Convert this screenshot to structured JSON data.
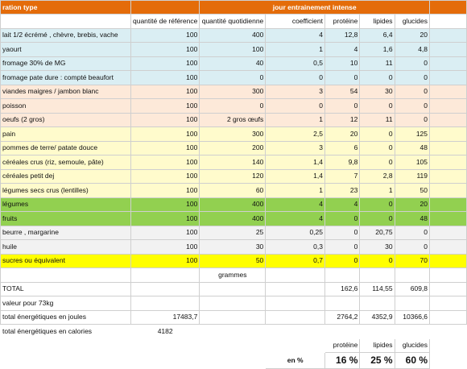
{
  "header": {
    "col1": "ration type",
    "title": "jour  entrainement intense"
  },
  "columns": [
    "quantité de référence",
    "quantité quotidienne",
    "coefficient",
    "protéine",
    "lipides",
    "glucides"
  ],
  "rows": [
    {
      "label": "lait 1/2 écrémé , chèvre, brebis, vache",
      "ref": "100",
      "qty": "400",
      "coef": "4",
      "prot": "12,8",
      "lip": "6,4",
      "glu": "20"
    },
    {
      "label": "yaourt",
      "ref": "100",
      "qty": "100",
      "coef": "1",
      "prot": "4",
      "lip": "1,6",
      "glu": "4,8"
    },
    {
      "label": "fromage   30% de MG",
      "ref": "100",
      "qty": "40",
      "coef": "0,5",
      "prot": "10",
      "lip": "11",
      "glu": "0"
    },
    {
      "label": "fromage pate dure : compté beaufort",
      "ref": "100",
      "qty": "0",
      "coef": "0",
      "prot": "0",
      "lip": "0",
      "glu": "0"
    },
    {
      "label": "viandes maigres / jambon blanc",
      "ref": "100",
      "qty": "300",
      "coef": "3",
      "prot": "54",
      "lip": "30",
      "glu": "0"
    },
    {
      "label": "poisson",
      "ref": "100",
      "qty": "0",
      "coef": "0",
      "prot": "0",
      "lip": "0",
      "glu": "0"
    },
    {
      "label": "oeufs (2 gros)",
      "ref": "100",
      "qty": "2 gros œufs",
      "coef": "1",
      "prot": "12",
      "lip": "11",
      "glu": "0"
    },
    {
      "label": "pain",
      "ref": "100",
      "qty": "300",
      "coef": "2,5",
      "prot": "20",
      "lip": "0",
      "glu": "125"
    },
    {
      "label": "pommes de terre/ patate douce",
      "ref": "100",
      "qty": "200",
      "coef": "3",
      "prot": "6",
      "lip": "0",
      "glu": "48"
    },
    {
      "label": "céréales crus (riz, semoule, pâte)",
      "ref": "100",
      "qty": "140",
      "coef": "1,4",
      "prot": "9,8",
      "lip": "0",
      "glu": "105"
    },
    {
      "label": "céréales petit dej",
      "ref": "100",
      "qty": "120",
      "coef": "1,4",
      "prot": "7",
      "lip": "2,8",
      "glu": "119"
    },
    {
      "label": "légumes secs crus (lentilles)",
      "ref": "100",
      "qty": "60",
      "coef": "1",
      "prot": "23",
      "lip": "1",
      "glu": "50"
    },
    {
      "label": "légumes",
      "ref": "100",
      "qty": "400",
      "coef": "4",
      "prot": "4",
      "lip": "0",
      "glu": "20"
    },
    {
      "label": "fruits",
      "ref": "100",
      "qty": "400",
      "coef": "4",
      "prot": "0",
      "lip": "0",
      "glu": "48"
    },
    {
      "label": "beurre , margarine",
      "ref": "100",
      "qty": "25",
      "coef": "0,25",
      "prot": "0",
      "lip": "20,75",
      "glu": "0"
    },
    {
      "label": "huile",
      "ref": "100",
      "qty": "30",
      "coef": "0,3",
      "prot": "0",
      "lip": "30",
      "glu": "0"
    },
    {
      "label": "sucres ou équivalent",
      "ref": "100",
      "qty": "50",
      "coef": "0,7",
      "prot": "0",
      "lip": "0",
      "glu": "70"
    }
  ],
  "grammes": "grammes",
  "total": {
    "label": "TOTAL",
    "prot": "162,6",
    "lip": "114,55",
    "glu": "609,8"
  },
  "weight": {
    "label": "valeur pour 73kg"
  },
  "joules": {
    "label": "total énergétiques en joules",
    "ref": "17483,7",
    "prot": "2764,2",
    "lip": "4352,9",
    "glu": "10366,6"
  },
  "calories": {
    "label": "total énergétiques en calories",
    "ref": "4182"
  },
  "summary": {
    "prot_label": "protéine",
    "lip_label": "lipides",
    "glu_label": "glucides",
    "en_label": "en %",
    "prot_pct": "16 %",
    "lip_pct": "25 %",
    "glu_pct": "60 %"
  },
  "colors": {
    "header": "#e46c0a",
    "dairy": "#daeef3",
    "protein": "#fde9d9",
    "starch": "#fffbcc",
    "veg": "#92d050",
    "fat": "#f2f2f2",
    "sugar": "#ffff00"
  }
}
